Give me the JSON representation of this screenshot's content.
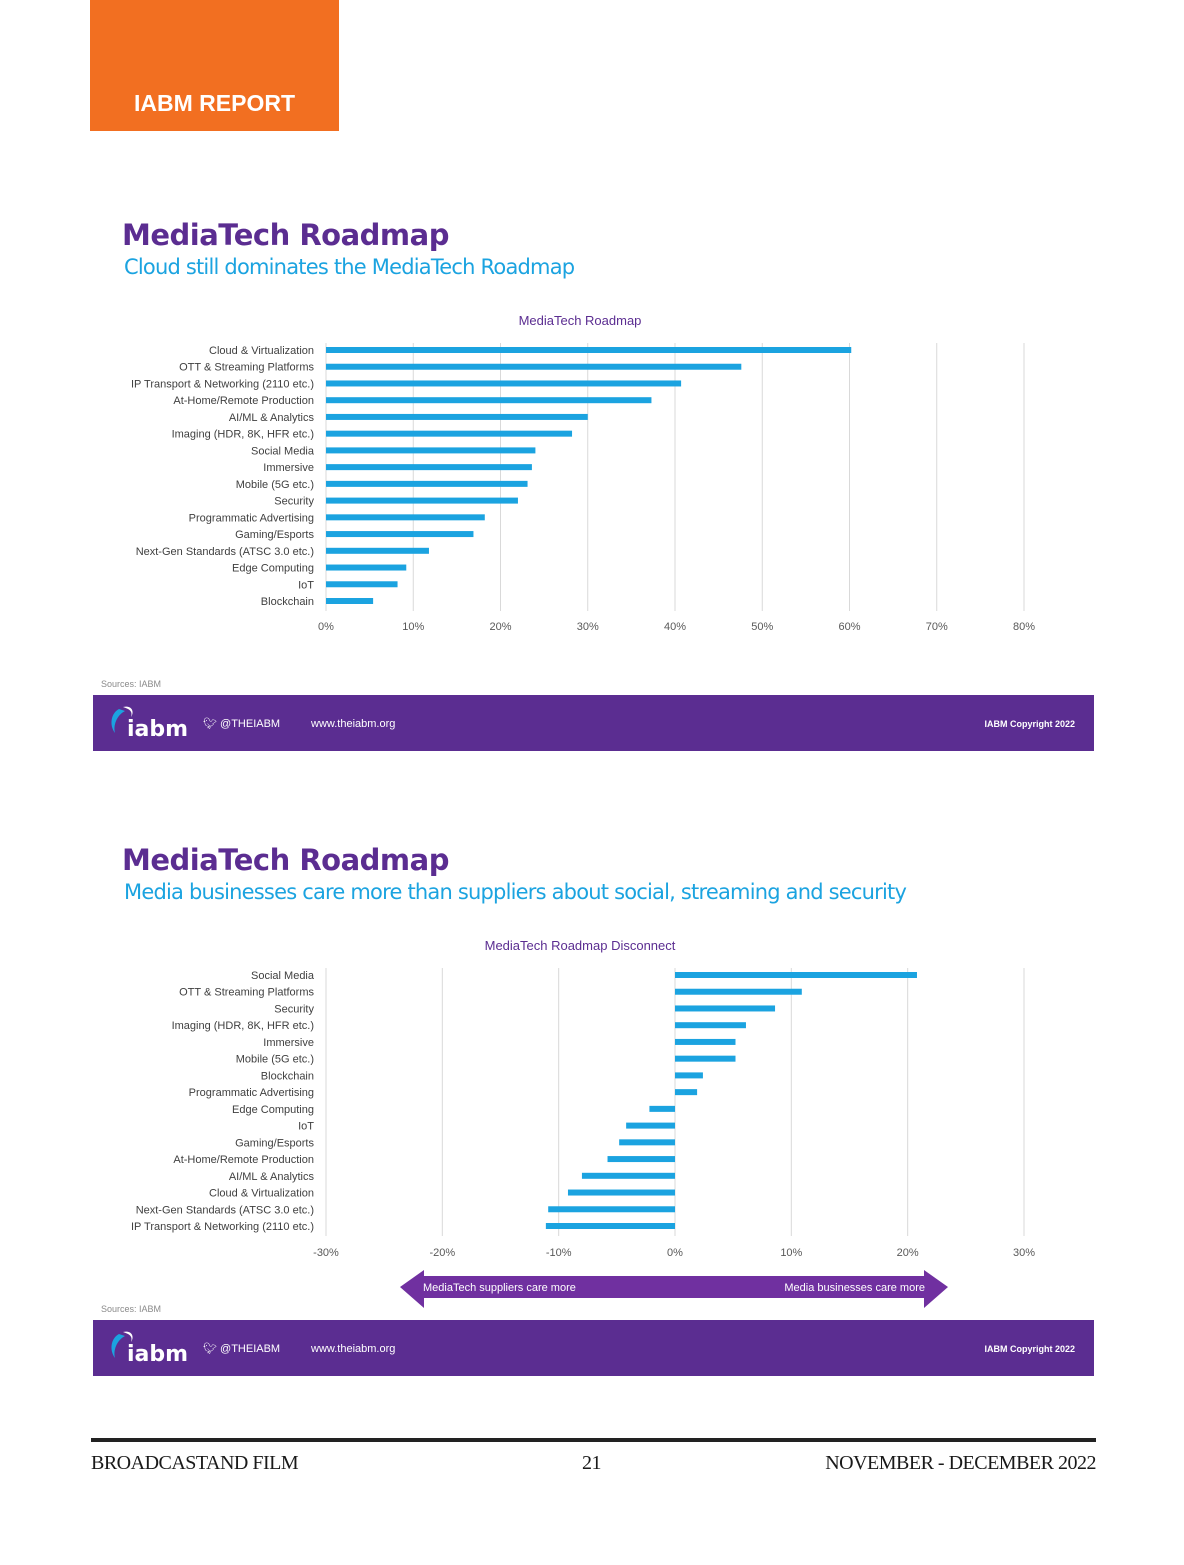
{
  "header": {
    "tab_label": "IABM REPORT",
    "tab_color": "#f26f21"
  },
  "sections": [
    {
      "title": "MediaTech Roadmap",
      "subtitle": "Cloud still dominates the MediaTech Roadmap",
      "source": "Sources: IABM"
    },
    {
      "title": "MediaTech Roadmap",
      "subtitle": "Media businesses care more than suppliers about social, streaming and security",
      "source": "Sources: IABM",
      "arrow_left": "MediaTech suppliers care more",
      "arrow_right": "Media businesses care more"
    }
  ],
  "band": {
    "logo_text": "iabm",
    "twitter": "@THEIABM",
    "website": "www.theiabm.org",
    "copyright": "IABM Copyright 2022",
    "color": "#5b2d91"
  },
  "footer": {
    "left": "BROADCASTAND FILM",
    "page": "21",
    "right": "NOVEMBER - DECEMBER 2022"
  },
  "chart_data": [
    {
      "type": "bar",
      "orientation": "horizontal",
      "title": "MediaTech Roadmap",
      "categories": [
        "Cloud & Virtualization",
        "OTT & Streaming Platforms",
        "IP Transport & Networking (2110 etc.)",
        "At-Home/Remote Production",
        "AI/ML & Analytics",
        "Imaging (HDR, 8K, HFR etc.)",
        "Social Media",
        "Immersive",
        "Mobile (5G etc.)",
        "Security",
        "Programmatic Advertising",
        "Gaming/Esports",
        "Next-Gen Standards (ATSC 3.0 etc.)",
        "Edge Computing",
        "IoT",
        "Blockchain"
      ],
      "values": [
        60.2,
        47.6,
        40.7,
        37.3,
        30.0,
        28.2,
        24.0,
        23.6,
        23.1,
        22.0,
        18.2,
        16.9,
        11.8,
        9.2,
        8.2,
        5.4
      ],
      "xlim": [
        0,
        80
      ],
      "xticks": [
        0,
        10,
        20,
        30,
        40,
        50,
        60,
        70,
        80
      ],
      "tick_labels": [
        "0%",
        "10%",
        "20%",
        "30%",
        "40%",
        "50%",
        "60%",
        "70%",
        "80%"
      ],
      "grid": true,
      "bar_color": "#1ba3e0"
    },
    {
      "type": "bar",
      "orientation": "horizontal",
      "title": "MediaTech Roadmap Disconnect",
      "categories": [
        "Social Media",
        "OTT & Streaming Platforms",
        "Security",
        "Imaging (HDR, 8K, HFR etc.)",
        "Immersive",
        "Mobile (5G etc.)",
        "Blockchain",
        "Programmatic Advertising",
        "Edge Computing",
        "IoT",
        "Gaming/Esports",
        "At-Home/Remote Production",
        "AI/ML & Analytics",
        "Cloud & Virtualization",
        "Next-Gen Standards (ATSC 3.0 etc.)",
        "IP Transport & Networking (2110 etc.)"
      ],
      "values": [
        20.8,
        10.9,
        8.6,
        6.1,
        5.2,
        5.2,
        2.4,
        1.9,
        -2.2,
        -4.2,
        -4.8,
        -5.8,
        -8.0,
        -9.2,
        -10.9,
        -11.1
      ],
      "xlim": [
        -30,
        30
      ],
      "xticks": [
        -30,
        -20,
        -10,
        0,
        10,
        20,
        30
      ],
      "tick_labels": [
        "-30%",
        "-20%",
        "-10%",
        "0%",
        "10%",
        "20%",
        "30%"
      ],
      "grid": true,
      "bar_color": "#1ba3e0"
    }
  ]
}
